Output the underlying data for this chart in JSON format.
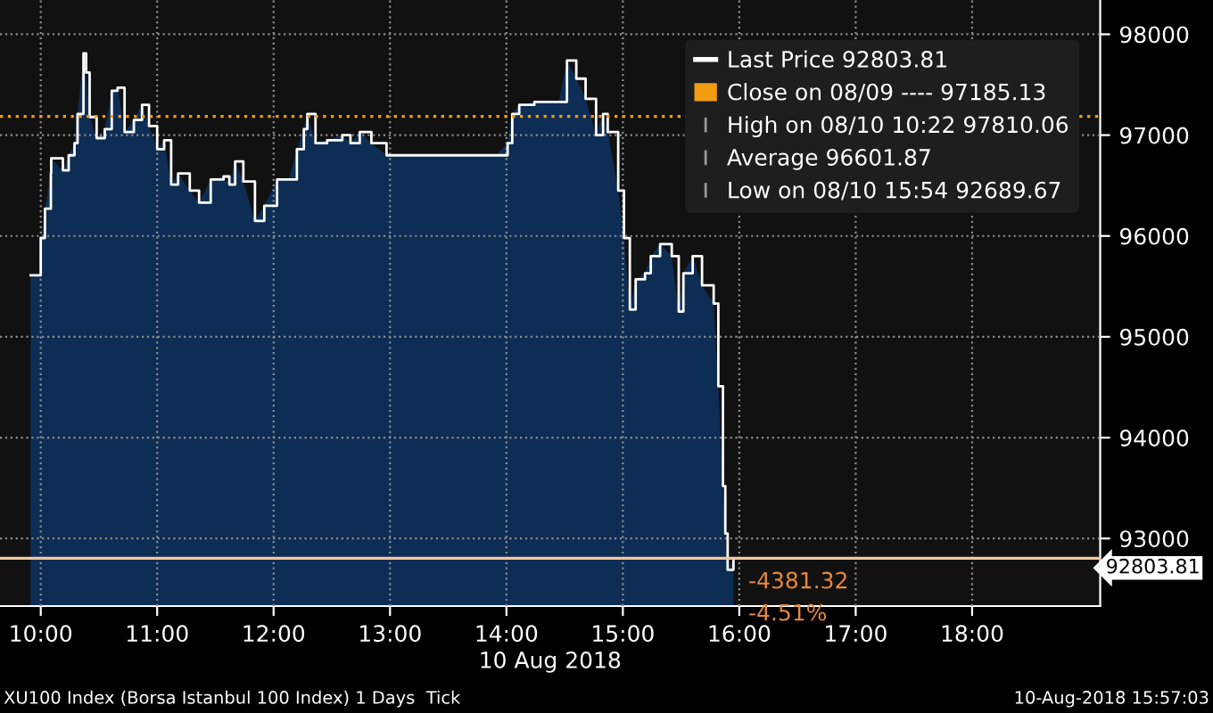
{
  "chart_data": {
    "type": "area",
    "xlabel": "10 Aug 2018",
    "x": [
      9.913,
      9.985,
      10.0,
      10.036,
      10.087,
      10.09,
      10.19,
      10.24,
      10.29,
      10.316,
      10.367,
      10.39,
      10.42,
      10.48,
      10.55,
      10.61,
      10.66,
      10.72,
      10.8,
      10.87,
      10.93,
      11.0,
      11.06,
      11.12,
      11.18,
      11.28,
      11.36,
      11.46,
      11.57,
      11.62,
      11.67,
      11.74,
      11.84,
      11.92,
      12.03,
      12.13,
      12.2,
      12.26,
      12.29,
      12.36,
      12.46,
      12.59,
      12.66,
      12.74,
      12.84,
      12.97,
      13.91,
      14.01,
      14.05,
      14.11,
      14.24,
      14.45,
      14.52,
      14.6,
      14.68,
      14.77,
      14.83,
      14.87,
      14.96,
      15.01,
      15.06,
      15.11,
      15.19,
      15.24,
      15.32,
      15.42,
      15.48,
      15.52,
      15.6,
      15.68,
      15.78,
      15.82,
      15.86,
      15.88,
      15.9,
      15.95
    ],
    "series": [
      {
        "color": "#0e2d55",
        "values": [
          95610,
          95610,
          95980,
          96270,
          96620,
          96770,
          96650,
          96800,
          96920,
          97210,
          97810,
          97620,
          97180,
          96970,
          97060,
          97440,
          97470,
          97030,
          97150,
          97300,
          97090,
          96860,
          96950,
          96510,
          96620,
          96450,
          96330,
          96560,
          96590,
          96510,
          96740,
          96540,
          96150,
          96300,
          96560,
          96560,
          96860,
          97060,
          97210,
          96920,
          96950,
          97000,
          96920,
          97030,
          96920,
          96800,
          96800,
          96920,
          97210,
          97300,
          97330,
          97330,
          97740,
          97560,
          97360,
          97000,
          97210,
          97030,
          96450,
          95980,
          95270,
          95570,
          95630,
          95800,
          95920,
          95800,
          95250,
          95630,
          95800,
          95510,
          95330,
          94510,
          93520,
          93050,
          92690,
          92800
        ]
      },
      {
        "type": "step",
        "name": "Last Price 92803.81",
        "color": "#ffffff",
        "values": [
          95610,
          95610,
          95980,
          96270,
          96620,
          96770,
          96650,
          96800,
          96920,
          97210,
          97810,
          97620,
          97180,
          96970,
          97060,
          97440,
          97470,
          97030,
          97150,
          97300,
          97090,
          96860,
          96950,
          96510,
          96620,
          96450,
          96330,
          96560,
          96590,
          96510,
          96740,
          96540,
          96150,
          96300,
          96560,
          96560,
          96860,
          97060,
          97210,
          96920,
          96950,
          97000,
          96920,
          97030,
          96920,
          96800,
          96800,
          96920,
          97210,
          97300,
          97330,
          97330,
          97740,
          97560,
          97360,
          97000,
          97210,
          97030,
          96450,
          95980,
          95270,
          95570,
          95630,
          95800,
          95920,
          95800,
          95250,
          95630,
          95800,
          95510,
          95330,
          94510,
          93520,
          93050,
          92690,
          92800
        ]
      }
    ],
    "xlim": [
      9.65,
      19.1
    ],
    "xticks": [
      {
        "value": 10,
        "label": "10:00"
      },
      {
        "value": 11,
        "label": "11:00"
      },
      {
        "value": 12,
        "label": "12:00"
      },
      {
        "value": 13,
        "label": "13:00"
      },
      {
        "value": 14,
        "label": "14:00"
      },
      {
        "value": 15,
        "label": "15:00"
      },
      {
        "value": 16,
        "label": "16:00"
      },
      {
        "value": 17,
        "label": "17:00"
      },
      {
        "value": 18,
        "label": "18:00"
      }
    ],
    "ylim": [
      92330,
      98340
    ],
    "yticks": [
      93000,
      94000,
      95000,
      96000,
      97000,
      98000
    ],
    "grid": true,
    "legend": "top right",
    "ref_lines": [
      {
        "axis": "y",
        "value": 97185.13,
        "label": "Close on 08/09 ---- 97185.13",
        "color": "#f39c12",
        "line_style": "dotted"
      },
      {
        "axis": "y",
        "value": 92803.81,
        "label": "92803.81",
        "color": "#f0c8a0",
        "line_style": "solid"
      }
    ],
    "annotations": [
      "High on 08/10 10:22 97810.06",
      "Average 96601.87",
      "Low on 08/10 15:54 92689.67",
      "-4381.32",
      "-4.51%",
      "XU100 Index (Borsa Istanbul 100 Index) 1 Days  Tick",
      "10-Aug-2018 15:57:03"
    ]
  }
}
